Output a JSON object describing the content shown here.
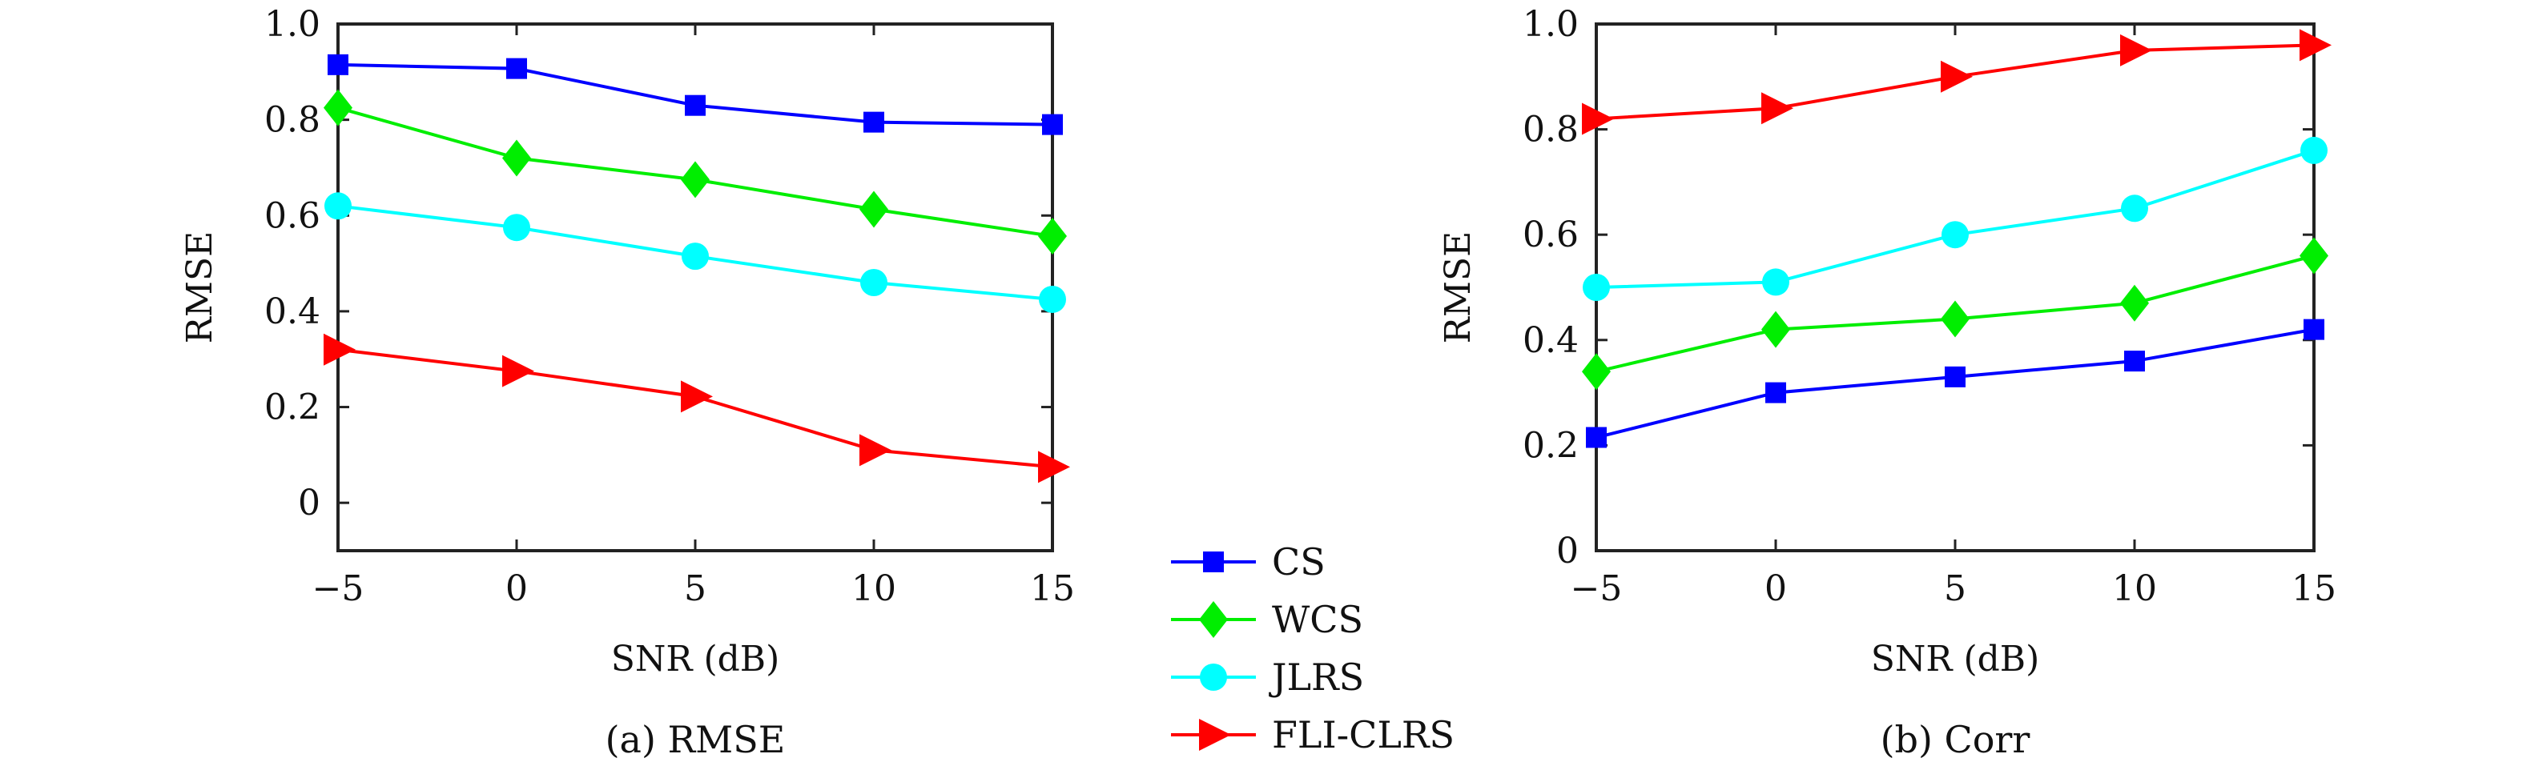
{
  "chart_data": [
    {
      "type": "line",
      "caption": "(a) RMSE",
      "xlabel": "SNR (dB)",
      "ylabel": "RMSE",
      "x": [
        -5,
        0,
        5,
        10,
        15
      ],
      "xlim": [
        -5,
        15
      ],
      "ylim": [
        -0.1,
        1.0
      ],
      "xticks": [
        "−5",
        "0",
        "5",
        "10",
        "15"
      ],
      "yticks": [
        "0",
        "0.2",
        "0.4",
        "0.6",
        "0.8",
        "1.0"
      ],
      "ytick_values": [
        0,
        0.2,
        0.4,
        0.6,
        0.8,
        1.0
      ],
      "grid": false,
      "series": [
        {
          "name": "CS",
          "color": "#0000ff",
          "marker": "square",
          "values": [
            0.915,
            0.907,
            0.83,
            0.795,
            0.79
          ]
        },
        {
          "name": "WCS",
          "color": "#00ee00",
          "marker": "diamond",
          "values": [
            0.825,
            0.72,
            0.675,
            0.613,
            0.557
          ]
        },
        {
          "name": "JLRS",
          "color": "#00ffff",
          "marker": "circle",
          "values": [
            0.62,
            0.575,
            0.515,
            0.46,
            0.425
          ]
        },
        {
          "name": "FLI-CLRS",
          "color": "#ff0000",
          "marker": "triangle-right",
          "values": [
            0.32,
            0.275,
            0.222,
            0.11,
            0.075
          ]
        }
      ]
    },
    {
      "type": "line",
      "caption": "(b) Corr",
      "xlabel": "SNR (dB)",
      "ylabel": "RMSE",
      "x": [
        -5,
        0,
        5,
        10,
        15
      ],
      "xlim": [
        -5,
        15
      ],
      "ylim": [
        0,
        1.0
      ],
      "xticks": [
        "−5",
        "0",
        "5",
        "10",
        "15"
      ],
      "yticks": [
        "0",
        "0.2",
        "0.4",
        "0.6",
        "0.8",
        "1.0"
      ],
      "ytick_values": [
        0,
        0.2,
        0.4,
        0.6,
        0.8,
        1.0
      ],
      "grid": false,
      "series": [
        {
          "name": "CS",
          "color": "#0000ff",
          "marker": "square",
          "values": [
            0.215,
            0.3,
            0.33,
            0.36,
            0.42
          ]
        },
        {
          "name": "WCS",
          "color": "#00ee00",
          "marker": "diamond",
          "values": [
            0.34,
            0.42,
            0.44,
            0.47,
            0.56
          ]
        },
        {
          "name": "JLRS",
          "color": "#00ffff",
          "marker": "circle",
          "values": [
            0.5,
            0.51,
            0.6,
            0.65,
            0.76
          ]
        },
        {
          "name": "FLI-CLRS",
          "color": "#ff0000",
          "marker": "triangle-right",
          "values": [
            0.82,
            0.84,
            0.9,
            0.95,
            0.96
          ]
        }
      ]
    }
  ],
  "legend": {
    "placement": "center-bottom",
    "entries": [
      {
        "name": "CS",
        "color": "#0000ff",
        "marker": "square"
      },
      {
        "name": "WCS",
        "color": "#00ee00",
        "marker": "diamond"
      },
      {
        "name": "JLRS",
        "color": "#00ffff",
        "marker": "circle"
      },
      {
        "name": "FLI-CLRS",
        "color": "#ff0000",
        "marker": "triangle-right"
      }
    ]
  }
}
